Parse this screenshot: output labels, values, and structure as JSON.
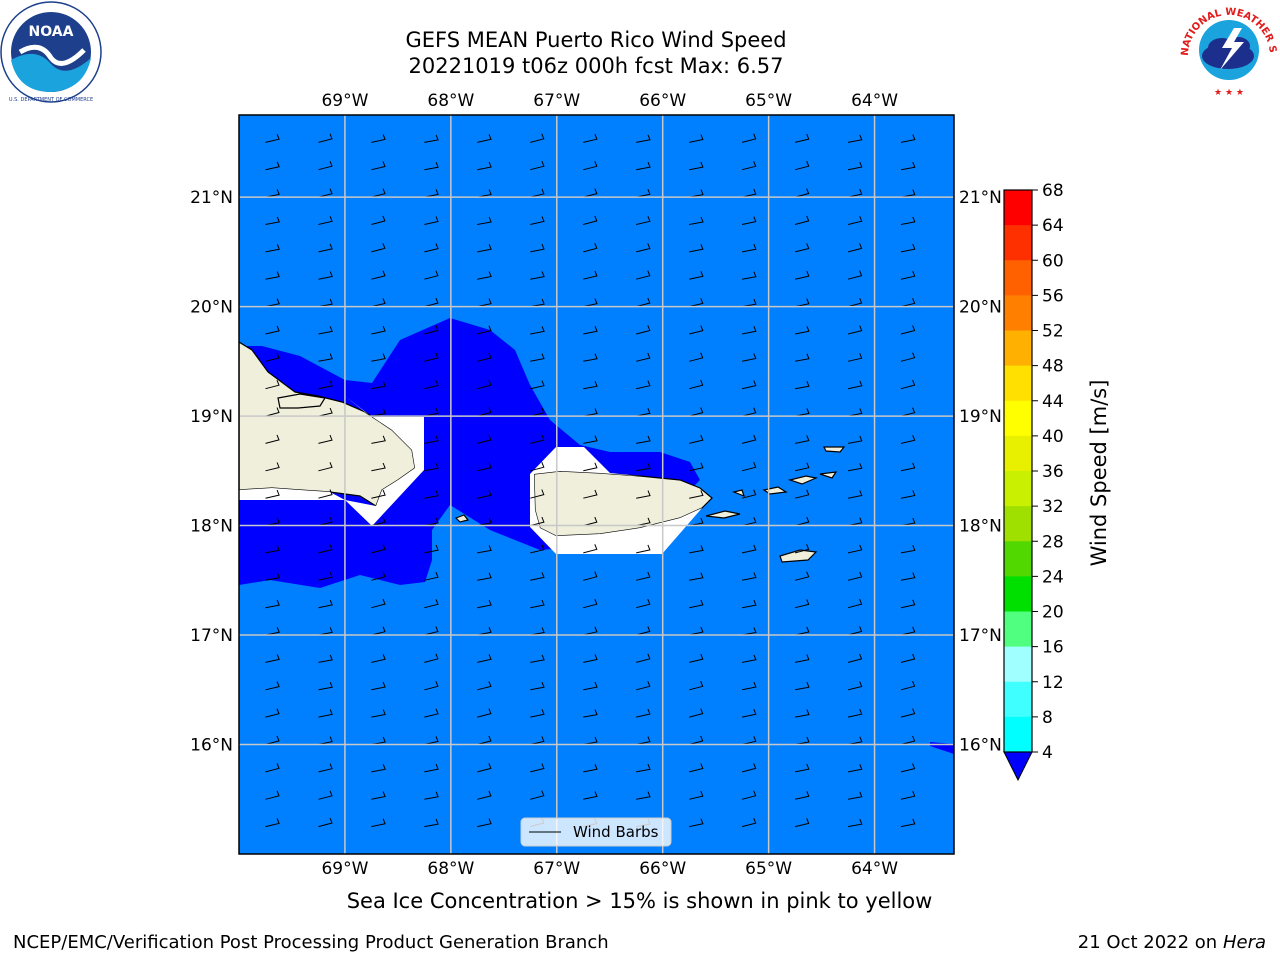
{
  "title": {
    "line1": "GEFS MEAN Puerto Rico Wind Speed",
    "line2": "20221019 t06z 000h fcst   Max: 6.57"
  },
  "logos": {
    "left": "noaa-logo",
    "left_text": "NOAA",
    "left_ring_text": "NATIONAL OCEANIC AND ATMOSPHERIC ADMINISTRATION",
    "left_bottom_text": "U.S. DEPARTMENT OF COMMERCE",
    "right": "nws-logo",
    "right_ring_text": "NATIONAL WEATHER SERVICE"
  },
  "map": {
    "lon_labels": [
      "69°W",
      "68°W",
      "67°W",
      "66°W",
      "65°W",
      "64°W"
    ],
    "lat_labels": [
      "21°N",
      "20°N",
      "19°N",
      "18°N",
      "17°N",
      "16°N"
    ],
    "lon_range": [
      -70.0,
      -63.25
    ],
    "lat_range": [
      15.0,
      21.75
    ],
    "ocean_color": "#0080ff",
    "low_wind_color": "#0000ff",
    "land_color": "#efefdc",
    "grid_color": "#c8c8c8"
  },
  "legend": {
    "label": "Wind Barbs"
  },
  "colorbar": {
    "label": "Wind Speed [m/s]",
    "ticks": [
      "68",
      "64",
      "60",
      "56",
      "52",
      "48",
      "44",
      "40",
      "36",
      "32",
      "28",
      "24",
      "20",
      "16",
      "12",
      "8",
      "4"
    ],
    "colors": [
      "#0080ff",
      "#00ffff",
      "#40ffff",
      "#a0ffff",
      "#50ff80",
      "#00e000",
      "#50d800",
      "#a0e000",
      "#c8f000",
      "#e8f000",
      "#ffff00",
      "#ffe000",
      "#ffb000",
      "#ff8000",
      "#ff6000",
      "#ff3000",
      "#ff0000"
    ],
    "under_color": "#0000ff"
  },
  "sea_ice_note": "Sea Ice Concentration > 15% is shown in pink to yellow",
  "footer": {
    "left": "NCEP/EMC/Verification Post Processing Product Generation Branch",
    "right_date": "21 Oct 2022 on",
    "right_host": "Hera"
  }
}
